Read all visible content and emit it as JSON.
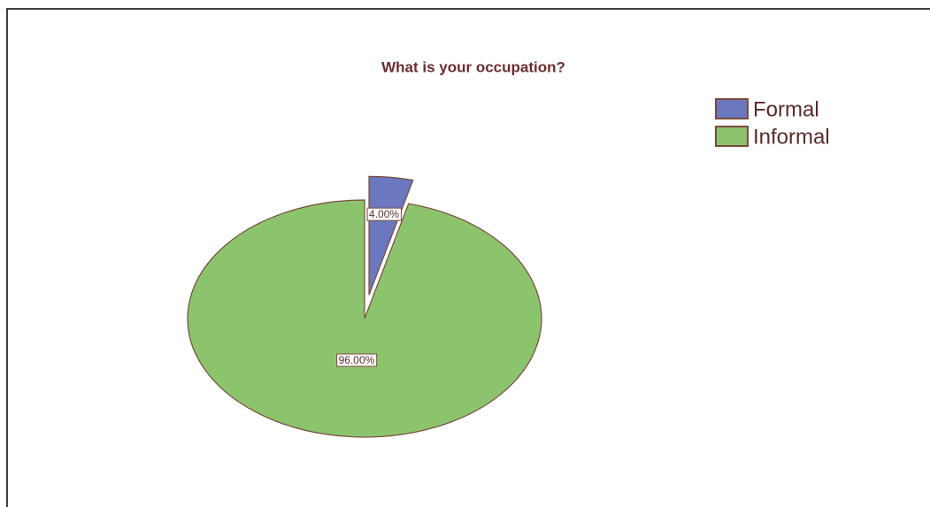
{
  "chart_data": {
    "type": "pie",
    "title": "What is your occupation?",
    "categories": [
      "Formal",
      "Informal"
    ],
    "values": [
      4,
      96
    ],
    "value_labels": [
      "4.00%",
      "96.00%"
    ],
    "colors": [
      "#6b78c0",
      "#8cc46e"
    ],
    "legend": "top-right"
  }
}
